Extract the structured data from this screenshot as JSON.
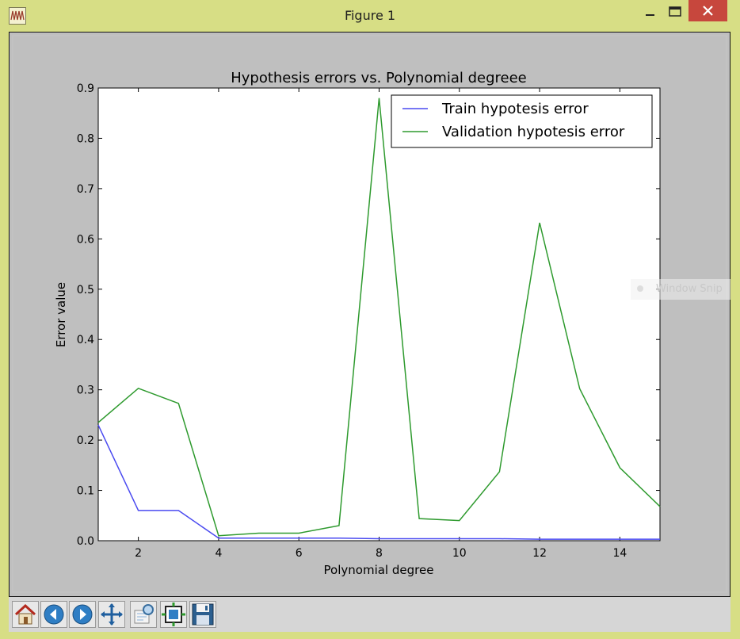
{
  "window": {
    "title": "Figure 1",
    "buttons": [
      "minimize",
      "maximize",
      "close"
    ]
  },
  "toolbar": {
    "buttons": [
      {
        "name": "home-icon"
      },
      {
        "name": "back-icon"
      },
      {
        "name": "forward-icon"
      },
      {
        "name": "pan-icon"
      },
      {
        "name": "zoom-icon"
      },
      {
        "name": "subplots-icon"
      },
      {
        "name": "save-icon"
      }
    ]
  },
  "overlay": {
    "watermark": "Window Snip"
  },
  "chart_data": {
    "type": "line",
    "title": "Hypothesis errors vs. Polynomial degreee",
    "xlabel": "Polynomial degree",
    "ylabel": "Error value",
    "xlim": [
      1,
      15
    ],
    "ylim": [
      0,
      0.9
    ],
    "xticks": [
      2,
      4,
      6,
      8,
      10,
      12,
      14
    ],
    "yticks": [
      0.0,
      0.1,
      0.2,
      0.3,
      0.4,
      0.5,
      0.6,
      0.7,
      0.8,
      0.9
    ],
    "legend": "top-right",
    "x": [
      1,
      2,
      3,
      4,
      5,
      6,
      7,
      8,
      9,
      10,
      11,
      12,
      13,
      14,
      15
    ],
    "series": [
      {
        "name": "Train hypotesis error",
        "color": "#4a4af0",
        "values": [
          0.23,
          0.06,
          0.06,
          0.005,
          0.005,
          0.005,
          0.005,
          0.004,
          0.004,
          0.004,
          0.004,
          0.003,
          0.003,
          0.003,
          0.003
        ]
      },
      {
        "name": "Validation hypotesis error",
        "color": "#2e9a2e",
        "values": [
          0.235,
          0.303,
          0.273,
          0.01,
          0.015,
          0.015,
          0.03,
          0.88,
          0.044,
          0.04,
          0.137,
          0.632,
          0.302,
          0.145,
          0.068
        ]
      }
    ]
  }
}
